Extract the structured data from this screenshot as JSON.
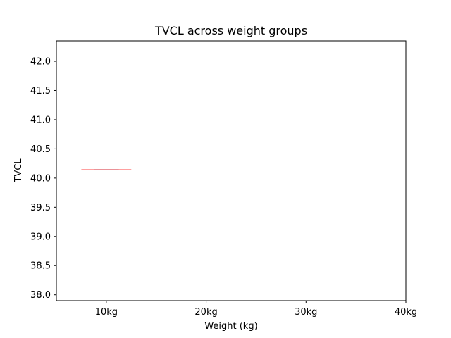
{
  "chart_data": {
    "type": "box",
    "title": "TVCL across weight groups",
    "xlabel": "Weight (kg)",
    "ylabel": "TVCL",
    "categories": [
      "10kg",
      "20kg",
      "30kg",
      "40kg"
    ],
    "boxes": [
      {
        "category": "10kg",
        "min": 40.14,
        "q1": 40.14,
        "median": 40.14,
        "q3": 40.14,
        "max": 40.14
      }
    ],
    "ylim": [
      37.9,
      42.35
    ],
    "yticks": [
      "38.0",
      "38.5",
      "39.0",
      "39.5",
      "40.0",
      "40.5",
      "41.0",
      "41.5",
      "42.0"
    ],
    "ytick_values": [
      38.0,
      38.5,
      39.0,
      39.5,
      40.0,
      40.5,
      41.0,
      41.5,
      42.0
    ],
    "grid": false,
    "colors": {
      "median": "#ff0000",
      "box": "#1f77b4",
      "axes": "#000000"
    }
  }
}
